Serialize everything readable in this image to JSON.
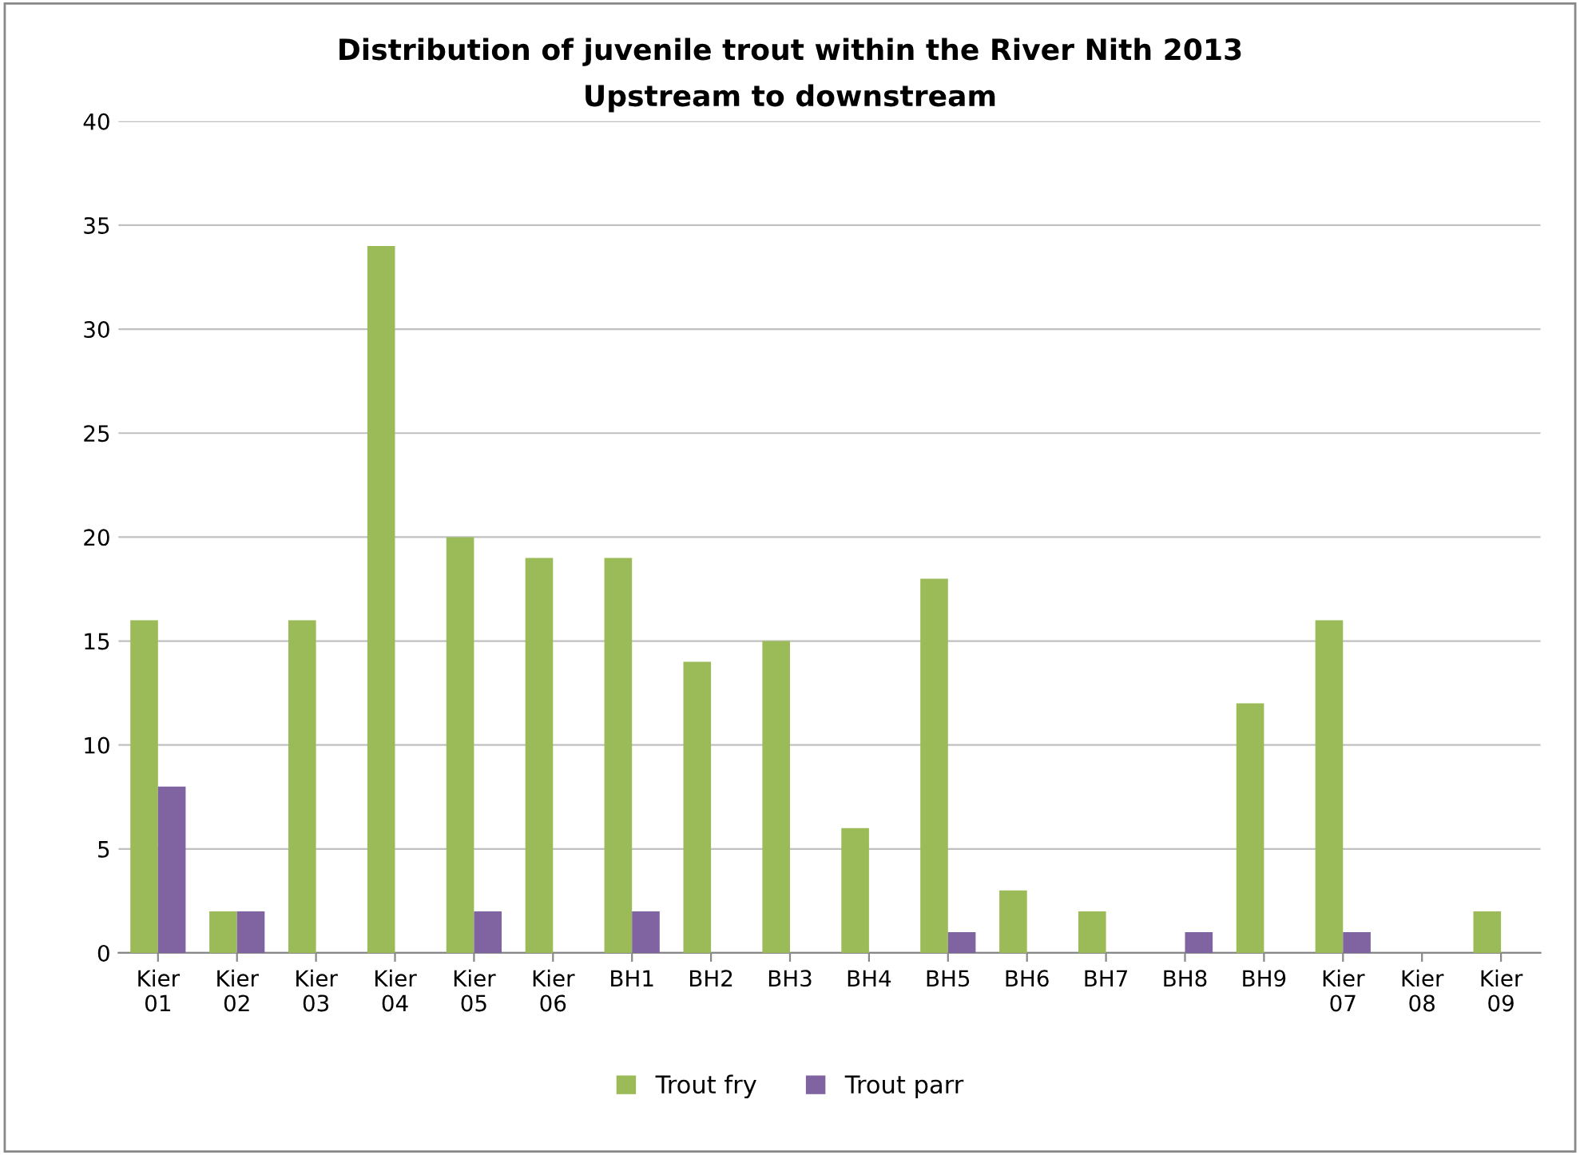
{
  "chart_data": {
    "type": "bar",
    "title": "Distribution of juvenile trout within the River Nith 2013",
    "subtitle": "Upstream to downstream",
    "categories": [
      "Kier 01",
      "Kier 02",
      "Kier 03",
      "Kier 04",
      "Kier 05",
      "Kier 06",
      "BH1",
      "BH2",
      "BH3",
      "BH4",
      "BH5",
      "BH6",
      "BH7",
      "BH8",
      "BH9",
      "Kier 07",
      "Kier 08",
      "Kier 09"
    ],
    "series": [
      {
        "name": "Trout fry",
        "color": "#9bbb59",
        "values": [
          16,
          2,
          16,
          34,
          20,
          19,
          19,
          14,
          15,
          6,
          18,
          3,
          2,
          0,
          12,
          16,
          0,
          2
        ]
      },
      {
        "name": "Trout parr",
        "color": "#8064a2",
        "values": [
          8,
          2,
          0,
          0,
          2,
          0,
          2,
          0,
          0,
          0,
          1,
          0,
          0,
          1,
          0,
          1,
          0,
          0
        ]
      }
    ],
    "ylim": [
      0,
      40
    ],
    "yticks": [
      0,
      5,
      10,
      15,
      20,
      25,
      30,
      35,
      40
    ],
    "grid": "y",
    "legend": "bottom"
  }
}
